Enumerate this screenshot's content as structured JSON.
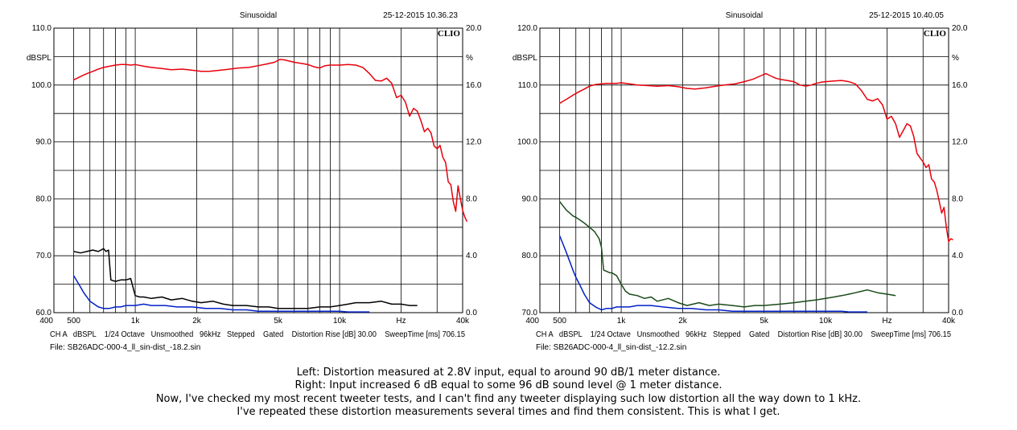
{
  "chart_data": [
    {
      "type": "line",
      "title": "Sinusoidal",
      "timestamp": "25-12-2015 10.36.23",
      "brand": "CLIO",
      "left_unit": "dBSPL",
      "right_unit": "%",
      "x_scale": "log",
      "xlim": [
        400,
        40000
      ],
      "ylim_left": [
        60.0,
        110.0
      ],
      "ylim_right": [
        0.0,
        20.0
      ],
      "y_ticks_left": [
        "110.0",
        "100.0",
        "90.0",
        "80.0",
        "70.0",
        "60.0"
      ],
      "y_ticks_right": [
        "20.0",
        "16.0",
        "12.0",
        "8.0",
        "4.0",
        "0.0"
      ],
      "x_tick_labels": [
        "400",
        "500",
        "1k",
        "2k",
        "5k",
        "10k",
        "Hz",
        "40k"
      ],
      "status_line": "CH A   dBSPL    1/24 Octave   Unsmoothed   96kHz   Stepped    Gated    Distortion Rise [dB] 30.00    SweepTime [ms] 706.15",
      "file_line": "File: SB26ADC-000-4_ll_sin-dist_-18.2.sin",
      "series": [
        {
          "color": "#e8000b",
          "axis": "left",
          "x": [
            500,
            540,
            580,
            620,
            660,
            700,
            750,
            800,
            850,
            900,
            950,
            1000,
            1100,
            1200,
            1350,
            1500,
            1700,
            1900,
            2100,
            2300,
            2600,
            2900,
            3200,
            3600,
            4000,
            4400,
            4800,
            5100,
            5400,
            5700,
            6000,
            6500,
            7000,
            7500,
            8000,
            8500,
            9000,
            9500,
            10000,
            11000,
            12000,
            13000,
            14000,
            15000,
            16000,
            17000,
            18000,
            19000,
            20000,
            21000,
            22000,
            23000,
            24000,
            25000,
            26000,
            27000,
            28000,
            29000,
            30000,
            31000,
            32000,
            33000,
            34000,
            35000,
            36000,
            37000,
            38000,
            39000,
            40000,
            41000,
            42000
          ],
          "y": [
            100.9,
            101.5,
            102,
            102.4,
            102.8,
            103.1,
            103.3,
            103.5,
            103.6,
            103.6,
            103.5,
            103.6,
            103.3,
            103.1,
            102.9,
            102.7,
            102.8,
            102.6,
            102.4,
            102.4,
            102.6,
            102.8,
            103.0,
            103.1,
            103.4,
            103.7,
            104.0,
            104.5,
            104.4,
            104.2,
            104.0,
            103.8,
            103.6,
            103.2,
            103.0,
            103.4,
            103.5,
            103.5,
            103.5,
            103.6,
            103.5,
            103.1,
            102.0,
            100.8,
            100.7,
            101.2,
            100.3,
            97.8,
            98.2,
            97.0,
            94.5,
            95.9,
            95.4,
            93.7,
            91.8,
            92.4,
            91.6,
            89.3,
            88.8,
            89.4,
            87.3,
            86.4,
            83.0,
            82.5,
            79.5,
            77.8,
            82.3,
            80.0,
            78.0,
            76.8,
            76.0
          ]
        },
        {
          "color": "#000000",
          "axis": "right",
          "x": [
            500,
            540,
            580,
            620,
            660,
            700,
            720,
            740,
            760,
            800,
            850,
            900,
            950,
            1000,
            1050,
            1100,
            1200,
            1350,
            1500,
            1700,
            1900,
            2100,
            2400,
            2700,
            3000,
            3500,
            4000,
            4500,
            5000,
            6000,
            7000,
            8000,
            9000,
            10000,
            11000,
            12000,
            14000,
            16000,
            18000,
            20000,
            22000,
            24000
          ],
          "y": [
            4.3,
            4.2,
            4.3,
            4.4,
            4.3,
            4.5,
            4.3,
            4.4,
            2.3,
            2.2,
            2.3,
            2.3,
            2.4,
            1.2,
            1.1,
            1.1,
            1.0,
            1.1,
            0.9,
            1.0,
            0.8,
            0.7,
            0.8,
            0.6,
            0.5,
            0.5,
            0.4,
            0.4,
            0.3,
            0.3,
            0.3,
            0.4,
            0.4,
            0.5,
            0.6,
            0.7,
            0.7,
            0.8,
            0.6,
            0.6,
            0.5,
            0.5
          ]
        },
        {
          "color": "#0020c8",
          "axis": "right",
          "x": [
            500,
            520,
            540,
            560,
            580,
            600,
            630,
            660,
            700,
            750,
            800,
            850,
            900,
            950,
            1000,
            1100,
            1200,
            1400,
            1600,
            1900,
            2200,
            2600,
            3000,
            3500,
            4000,
            5000,
            6000,
            7000,
            8000,
            9000,
            10000,
            11000,
            12000,
            13000,
            14000
          ],
          "y": [
            2.6,
            2.2,
            1.8,
            1.4,
            1.1,
            0.8,
            0.6,
            0.4,
            0.3,
            0.3,
            0.4,
            0.4,
            0.5,
            0.5,
            0.5,
            0.6,
            0.5,
            0.5,
            0.4,
            0.4,
            0.3,
            0.3,
            0.2,
            0.2,
            0.1,
            0.1,
            0.1,
            0.1,
            0.1,
            0.1,
            0.1,
            0.05,
            0.05,
            0.05,
            0.05
          ]
        }
      ]
    },
    {
      "type": "line",
      "title": "Sinusoidal",
      "timestamp": "25-12-2015 10.40.05",
      "brand": "CLIO",
      "left_unit": "dBSPL",
      "right_unit": "%",
      "x_scale": "log",
      "xlim": [
        400,
        40000
      ],
      "ylim_left": [
        70.0,
        120.0
      ],
      "ylim_right": [
        0.0,
        20.0
      ],
      "y_ticks_left": [
        "120.0",
        "110.0",
        "100.0",
        "90.0",
        "80.0",
        "70.0"
      ],
      "y_ticks_right": [
        "20.0",
        "16.0",
        "12.0",
        "8.0",
        "4.0",
        "0.0"
      ],
      "x_tick_labels": [
        "400",
        "500",
        "1k",
        "2k",
        "5k",
        "10k",
        "Hz",
        "40k"
      ],
      "status_line": "CH A   dBSPL    1/24 Octave   Unsmoothed   96kHz   Stepped    Gated    Distortion Rise [dB] 30.00    SweepTime [ms] 706.15",
      "file_line": "File: SB26ADC-000-4_ll_sin-dist_-12.2.sin",
      "series": [
        {
          "color": "#e8000b",
          "axis": "left",
          "x": [
            500,
            540,
            580,
            620,
            660,
            700,
            750,
            800,
            850,
            900,
            950,
            1000,
            1100,
            1200,
            1350,
            1500,
            1700,
            1900,
            2100,
            2300,
            2600,
            2900,
            3200,
            3600,
            4000,
            4400,
            4800,
            5100,
            5400,
            5700,
            6000,
            6500,
            7000,
            7500,
            8000,
            8500,
            9000,
            9500,
            10000,
            11000,
            12000,
            13000,
            14000,
            15000,
            16000,
            17000,
            18000,
            19000,
            20000,
            21000,
            22000,
            23000,
            24000,
            25000,
            26000,
            27000,
            28000,
            29000,
            30000,
            31000,
            32000,
            33000,
            34000,
            35000,
            36000,
            37000,
            38000,
            39000,
            40000,
            41000,
            42000
          ],
          "y": [
            106.8,
            107.5,
            108.2,
            108.8,
            109.3,
            109.8,
            110.1,
            110.2,
            110.3,
            110.3,
            110.3,
            110.4,
            110.2,
            110.0,
            109.9,
            109.8,
            109.9,
            109.7,
            109.4,
            109.3,
            109.5,
            109.8,
            110.0,
            110.2,
            110.6,
            111.0,
            111.6,
            112.0,
            111.6,
            111.2,
            111.0,
            110.8,
            110.6,
            110.0,
            109.8,
            110.0,
            110.3,
            110.5,
            110.6,
            110.7,
            110.8,
            110.6,
            110.2,
            109.0,
            107.5,
            107.2,
            107.6,
            106.5,
            104.0,
            104.5,
            103.2,
            100.8,
            102.0,
            103.2,
            102.8,
            101.0,
            98.0,
            97.2,
            96.5,
            95.5,
            96.0,
            93.5,
            93.0,
            91.5,
            89.5,
            87.5,
            88.5,
            85.0,
            82.5,
            83.0,
            82.8
          ]
        },
        {
          "color": "#1a4a1a",
          "axis": "right",
          "x": [
            500,
            520,
            540,
            560,
            580,
            600,
            630,
            660,
            700,
            740,
            780,
            800,
            820,
            850,
            880,
            900,
            950,
            1000,
            1050,
            1100,
            1200,
            1300,
            1400,
            1500,
            1700,
            1900,
            2100,
            2400,
            2700,
            3000,
            3500,
            4000,
            4500,
            5000,
            6000,
            7000,
            8000,
            9000,
            10000,
            11000,
            12000,
            13000,
            14000,
            15000,
            16000,
            18000,
            20000,
            22000
          ],
          "y": [
            7.8,
            7.5,
            7.2,
            7.0,
            6.8,
            6.7,
            6.5,
            6.3,
            6.0,
            5.7,
            5.2,
            4.6,
            3.0,
            2.9,
            2.8,
            2.8,
            2.6,
            2.0,
            1.5,
            1.3,
            1.2,
            1.0,
            1.1,
            0.8,
            1.0,
            0.7,
            0.5,
            0.7,
            0.5,
            0.6,
            0.5,
            0.4,
            0.5,
            0.5,
            0.6,
            0.7,
            0.8,
            0.9,
            1.0,
            1.1,
            1.2,
            1.3,
            1.4,
            1.5,
            1.6,
            1.4,
            1.3,
            1.2
          ]
        },
        {
          "color": "#0020c8",
          "axis": "right",
          "x": [
            500,
            520,
            540,
            560,
            580,
            600,
            630,
            660,
            700,
            750,
            800,
            850,
            900,
            950,
            1000,
            1100,
            1200,
            1400,
            1600,
            1900,
            2200,
            2600,
            3000,
            3500,
            4000,
            5000,
            6000,
            7000,
            8000,
            9000,
            10000,
            11000,
            12000,
            13000,
            14000,
            15000,
            16000
          ],
          "y": [
            5.4,
            4.8,
            4.2,
            3.6,
            3.0,
            2.5,
            1.9,
            1.3,
            0.7,
            0.4,
            0.2,
            0.3,
            0.3,
            0.4,
            0.4,
            0.4,
            0.5,
            0.5,
            0.4,
            0.3,
            0.3,
            0.2,
            0.2,
            0.1,
            0.1,
            0.1,
            0.1,
            0.1,
            0.1,
            0.1,
            0.1,
            0.1,
            0.1,
            0.05,
            0.05,
            0.05,
            0.05
          ]
        }
      ]
    }
  ],
  "caption": {
    "line1": "Left: Distortion measured at 2.8V input, equal to around 90 dB/1 meter distance.",
    "line2": "Right: Input increased 6 dB equal to some 96 dB sound level @ 1 meter distance.",
    "line3": "Now, I've checked my most recent tweeter tests, and I can't find any tweeter displaying such low distortion all the way down to 1 kHz.",
    "line4": "I've repeated these distortion measurements several times and find them consistent. This is what I get."
  }
}
